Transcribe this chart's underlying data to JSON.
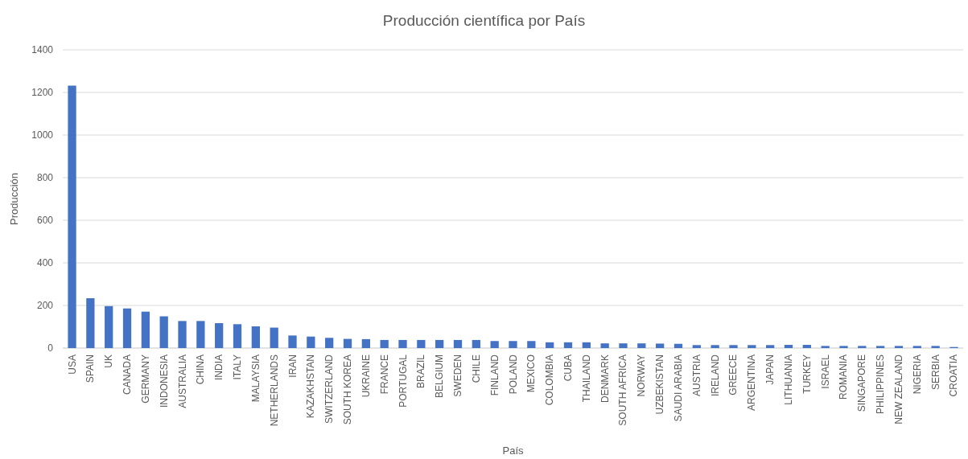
{
  "chart_data": {
    "type": "bar",
    "title": "Producción científica por País",
    "xlabel": "País",
    "ylabel": "Producción",
    "categories": [
      "USA",
      "SPAIN",
      "UK",
      "CANADA",
      "GERMANY",
      "INDONESIA",
      "AUSTRALIA",
      "CHINA",
      "INDIA",
      "ITALY",
      "MALAYSIA",
      "NETHERLANDS",
      "IRAN",
      "KAZAKHSTAN",
      "SWITZERLAND",
      "SOUTH KOREA",
      "UKRAINE",
      "FRANCE",
      "PORTUGAL",
      "BRAZIL",
      "BELGIUM",
      "SWEDEN",
      "CHILE",
      "FINLAND",
      "POLAND",
      "MEXICO",
      "COLOMBIA",
      "CUBA",
      "THAILAND",
      "DENMARK",
      "SOUTH AFRICA",
      "NORWAY",
      "UZBEKISTAN",
      "SAUDI ARABIA",
      "AUSTRIA",
      "IRELAND",
      "GREECE",
      "ARGENTINA",
      "JAPAN",
      "LITHUANIA",
      "TURKEY",
      "ISRAEL",
      "ROMANIA",
      "SINGAPORE",
      "PHILIPPINES",
      "NEW ZEALAND",
      "NIGERIA",
      "SERBIA",
      "CROATIA"
    ],
    "values": [
      1232,
      234,
      197,
      186,
      171,
      149,
      127,
      127,
      117,
      112,
      102,
      96,
      59,
      54,
      48,
      43,
      42,
      38,
      38,
      38,
      38,
      38,
      38,
      33,
      33,
      33,
      27,
      27,
      27,
      22,
      22,
      22,
      21,
      20,
      14,
      14,
      14,
      14,
      14,
      15,
      15,
      10,
      10,
      10,
      10,
      10,
      10,
      10,
      5
    ],
    "color": "#4472c4",
    "ylim": [
      0,
      1400
    ],
    "yticks": [
      0,
      200,
      400,
      600,
      800,
      1000,
      1200,
      1400
    ],
    "grid": "y"
  }
}
